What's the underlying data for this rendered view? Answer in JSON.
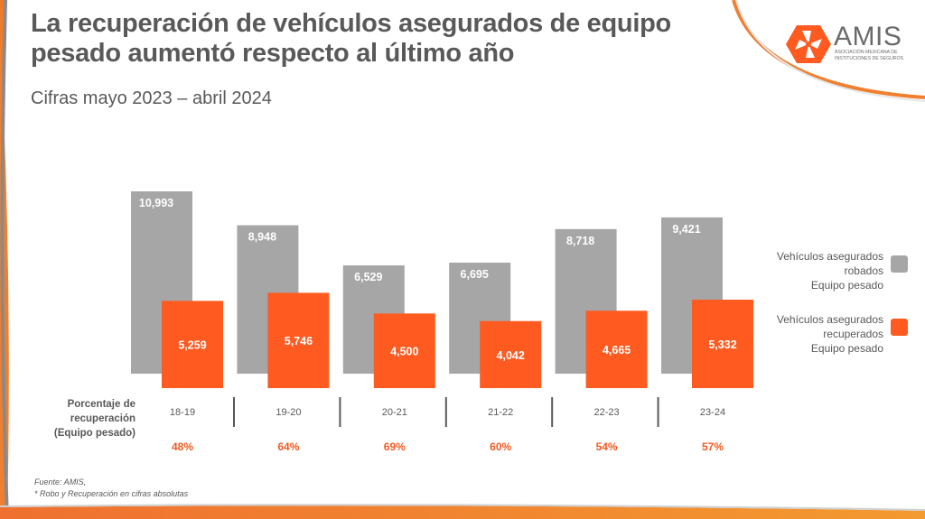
{
  "header": {
    "title": "La recuperación de vehículos asegurados de equipo pesado aumentó respecto al último año",
    "subtitle": "Cifras mayo 2023 – abril 2024"
  },
  "logo": {
    "icon": "amis-hexagon-logo-icon",
    "name": "AMIS",
    "line1": "ASOCIACIÓN MEXICANA DE",
    "line2": "INSTITUCIONES DE SEGUROS"
  },
  "colors": {
    "gray_bar": "#a6a6a6",
    "orange_bar": "#ff5a1f",
    "accent": "#f0812a",
    "text": "#595959",
    "percent": "#f05a22"
  },
  "chart_data": {
    "type": "bar",
    "title": "La recuperación de vehículos asegurados de equipo pesado aumentó respecto al último año",
    "subtitle": "Cifras mayo 2023 – abril 2024",
    "categories": [
      "18-19",
      "19-20",
      "20-21",
      "21-22",
      "22-23",
      "23-24"
    ],
    "series": [
      {
        "name": "Vehículos asegurados robados Equipo pesado",
        "values": [
          10993,
          8948,
          6529,
          6695,
          8718,
          9421
        ],
        "labels": [
          "10,993",
          "8,948",
          "6,529",
          "6,695",
          "8,718",
          "9,421"
        ]
      },
      {
        "name": "Vehículos asegurados recuperados Equipo pesado",
        "values": [
          5259,
          5746,
          4500,
          4042,
          4665,
          5332
        ],
        "labels": [
          "5,259",
          "5,746",
          "4,500",
          "4,042",
          "4,665",
          "5,332"
        ]
      }
    ],
    "recovery_percent": [
      "48%",
      "64%",
      "69%",
      "60%",
      "54%",
      "57%"
    ],
    "row_label": "Porcentaje de recuperación (Equipo pesado)",
    "legend": {
      "placement": "right",
      "items": [
        {
          "lines": [
            "Vehículos asegurados",
            "robados",
            "Equipo pesado"
          ]
        },
        {
          "lines": [
            "Vehículos asegurados",
            "recuperados",
            "Equipo pesado"
          ]
        }
      ]
    },
    "xlabel": "",
    "ylabel": "",
    "ylim": [
      0,
      11000
    ],
    "grid": false,
    "axes_visible": false
  },
  "row_label_lines": [
    "Porcentaje de",
    "recuperación",
    "(Equipo pesado)"
  ],
  "footnote": {
    "line1": "Fuente:  AMIS,",
    "line2": "* Robo y Recuperación en cifras absolutas"
  }
}
